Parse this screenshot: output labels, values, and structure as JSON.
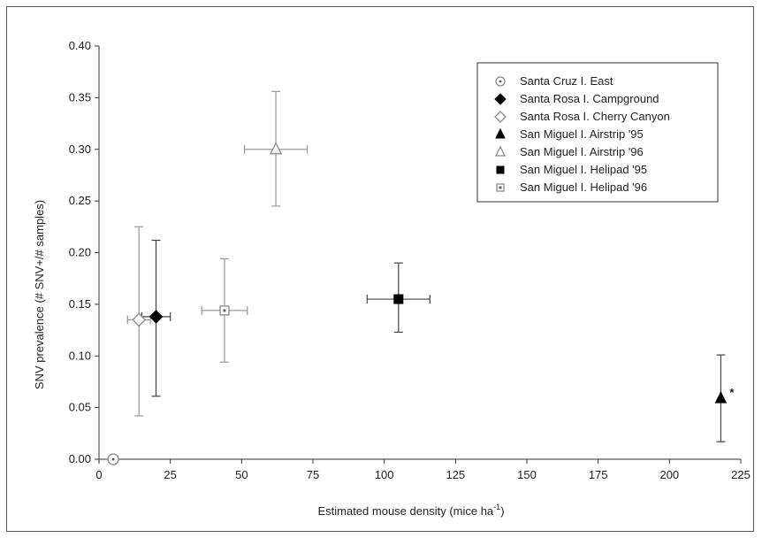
{
  "chart_data": {
    "type": "scatter",
    "title": "",
    "xlabel": "Estimated mouse density (mice ha",
    "xlabel_sup": "-1",
    "xlabel_close": ")",
    "ylabel": "SNV prevalence (# SNV+/# samples)",
    "xlim": [
      0,
      225
    ],
    "ylim": [
      0,
      0.4
    ],
    "x_ticks": [
      "0",
      "25",
      "50",
      "75",
      "100",
      "125",
      "150",
      "175",
      "200",
      "225"
    ],
    "x_tick_values": [
      0,
      25,
      50,
      75,
      100,
      125,
      150,
      175,
      200,
      225
    ],
    "y_ticks": [
      "0.00",
      "0.05",
      "0.10",
      "0.15",
      "0.20",
      "0.25",
      "0.30",
      "0.35",
      "0.40"
    ],
    "y_tick_values": [
      0,
      0.05,
      0.1,
      0.15,
      0.2,
      0.25,
      0.3,
      0.35,
      0.4
    ],
    "grid": false,
    "legend_position": "top-right",
    "series": [
      {
        "name": "Santa Cruz I. East",
        "marker": "circle-dot",
        "color": "#666666",
        "x": 5,
        "y": 0.0,
        "xerr": [
          4.5,
          5.5
        ],
        "yerr": [
          0.0,
          0.0
        ]
      },
      {
        "name": "Santa Rosa I. Campground",
        "marker": "diamond-filled",
        "color": "#000000",
        "x": 20,
        "y": 0.138,
        "xerr": [
          15,
          25
        ],
        "yerr": [
          0.061,
          0.212
        ]
      },
      {
        "name": "Santa Rosa I. Cherry Canyon",
        "marker": "diamond-open",
        "color": "#999999",
        "x": 14,
        "y": 0.135,
        "xerr": [
          10,
          18
        ],
        "yerr": [
          0.042,
          0.225
        ]
      },
      {
        "name": "San Miguel I. Airstrip '95",
        "marker": "triangle-filled",
        "color": "#000000",
        "x": 218,
        "y": 0.059,
        "xerr": [
          218,
          218
        ],
        "yerr": [
          0.017,
          0.101
        ],
        "annotation": "*"
      },
      {
        "name": "San Miguel I. Airstrip '96",
        "marker": "triangle-open",
        "color": "#999999",
        "x": 62,
        "y": 0.3,
        "xerr": [
          51,
          73
        ],
        "yerr": [
          0.245,
          0.356
        ]
      },
      {
        "name": "San Miguel I. Helipad '95",
        "marker": "square-filled",
        "color": "#000000",
        "x": 105,
        "y": 0.155,
        "xerr": [
          94,
          116
        ],
        "yerr": [
          0.123,
          0.19
        ]
      },
      {
        "name": "San Miguel I. Helipad '96",
        "marker": "square-dot",
        "color": "#999999",
        "x": 44,
        "y": 0.144,
        "xerr": [
          36,
          52
        ],
        "yerr": [
          0.094,
          0.194
        ]
      }
    ]
  }
}
